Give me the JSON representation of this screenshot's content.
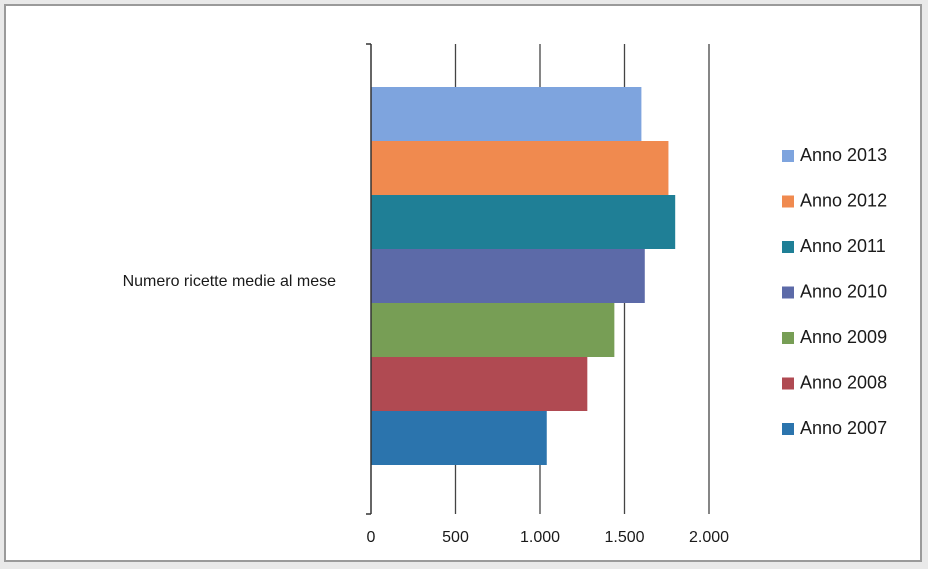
{
  "chart_data": {
    "type": "bar",
    "orientation": "horizontal",
    "title": "",
    "xlabel": "",
    "ylabel": "",
    "categories": [
      "Numero ricette medie al mese"
    ],
    "series": [
      {
        "name": "Anno 2013",
        "values": [
          1600
        ],
        "color": "#7ea4de"
      },
      {
        "name": "Anno 2012",
        "values": [
          1760
        ],
        "color": "#f08a4f"
      },
      {
        "name": "Anno 2011",
        "values": [
          1800
        ],
        "color": "#1f7f96"
      },
      {
        "name": "Anno 2010",
        "values": [
          1620
        ],
        "color": "#5c6aa8"
      },
      {
        "name": "Anno 2009",
        "values": [
          1440
        ],
        "color": "#779e55"
      },
      {
        "name": "Anno 2008",
        "values": [
          1280
        ],
        "color": "#b04a52"
      },
      {
        "name": "Anno 2007",
        "values": [
          1040
        ],
        "color": "#2b74ad"
      }
    ],
    "xlim": [
      0,
      2000
    ],
    "xticks": [
      0,
      500,
      1000,
      1500,
      2000
    ],
    "xtick_labels": [
      "0",
      "500",
      "1.000",
      "1.500",
      "2.000"
    ],
    "grid": "vertical",
    "legend_position": "right"
  }
}
